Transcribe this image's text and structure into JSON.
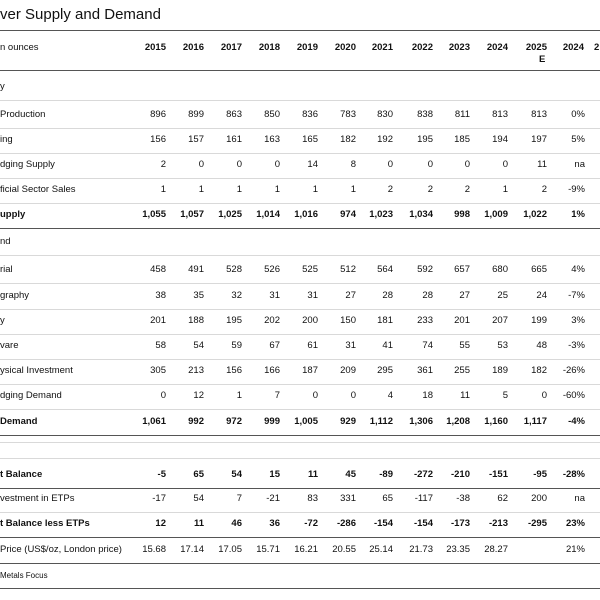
{
  "title": "ver Supply and Demand",
  "header": {
    "unit": "n ounces",
    "years": [
      "2015",
      "2016",
      "2017",
      "2018",
      "2019",
      "2020",
      "2021",
      "2022",
      "2023",
      "2024",
      "2025"
    ],
    "estimate": "E",
    "change": "2024",
    "cut": "2"
  },
  "rows": [
    {
      "label": "y",
      "section": true
    },
    {
      "label": "Production",
      "cells": [
        "896",
        "899",
        "863",
        "850",
        "836",
        "783",
        "830",
        "838",
        "811",
        "813",
        "813",
        "0%"
      ]
    },
    {
      "label": "ing",
      "cells": [
        "156",
        "157",
        "161",
        "163",
        "165",
        "182",
        "192",
        "195",
        "185",
        "194",
        "197",
        "5%"
      ]
    },
    {
      "label": "dging Supply",
      "cells": [
        "2",
        "0",
        "0",
        "0",
        "14",
        "8",
        "0",
        "0",
        "0",
        "0",
        "11",
        "na"
      ]
    },
    {
      "label": "ficial Sector Sales",
      "cells": [
        "1",
        "1",
        "1",
        "1",
        "1",
        "1",
        "2",
        "2",
        "2",
        "1",
        "2",
        "-9%"
      ]
    },
    {
      "label": "upply",
      "bold": true,
      "cells": [
        "1,055",
        "1,057",
        "1,025",
        "1,014",
        "1,016",
        "974",
        "1,023",
        "1,034",
        "998",
        "1,009",
        "1,022",
        "1%"
      ]
    },
    {
      "label": "nd",
      "section": true
    },
    {
      "label": "rial",
      "cells": [
        "458",
        "491",
        "528",
        "526",
        "525",
        "512",
        "564",
        "592",
        "657",
        "680",
        "665",
        "4%"
      ]
    },
    {
      "label": "graphy",
      "cells": [
        "38",
        "35",
        "32",
        "31",
        "31",
        "27",
        "28",
        "28",
        "27",
        "25",
        "24",
        "-7%"
      ]
    },
    {
      "label": "y",
      "cells": [
        "201",
        "188",
        "195",
        "202",
        "200",
        "150",
        "181",
        "233",
        "201",
        "207",
        "199",
        "3%"
      ]
    },
    {
      "label": "vare",
      "cells": [
        "58",
        "54",
        "59",
        "67",
        "61",
        "31",
        "41",
        "74",
        "55",
        "53",
        "48",
        "-3%"
      ]
    },
    {
      "label": "ysical Investment",
      "cells": [
        "305",
        "213",
        "156",
        "166",
        "187",
        "209",
        "295",
        "361",
        "255",
        "189",
        "182",
        "-26%"
      ]
    },
    {
      "label": "dging Demand",
      "cells": [
        "0",
        "12",
        "1",
        "7",
        "0",
        "0",
        "4",
        "18",
        "11",
        "5",
        "0",
        "-60%"
      ]
    },
    {
      "label": "Demand",
      "bold": true,
      "cells": [
        "1,061",
        "992",
        "972",
        "999",
        "1,005",
        "929",
        "1,112",
        "1,306",
        "1,208",
        "1,160",
        "1,117",
        "-4%"
      ]
    },
    {
      "label": "t Balance",
      "bold": true,
      "cells": [
        "-5",
        "65",
        "54",
        "15",
        "11",
        "45",
        "-89",
        "-272",
        "-210",
        "-151",
        "-95",
        "-28%"
      ]
    },
    {
      "label": "vestment in ETPs",
      "cells": [
        "-17",
        "54",
        "7",
        "-21",
        "83",
        "331",
        "65",
        "-117",
        "-38",
        "62",
        "200",
        "na"
      ]
    },
    {
      "label": "t Balance less ETPs",
      "bold": true,
      "cells": [
        "12",
        "11",
        "46",
        "36",
        "-72",
        "-286",
        "-154",
        "-154",
        "-173",
        "-213",
        "-295",
        "23%"
      ]
    },
    {
      "label": "Price (US$/oz, London price)",
      "cells": [
        "15.68",
        "17.14",
        "17.05",
        "15.71",
        "16.21",
        "20.55",
        "25.14",
        "21.73",
        "23.35",
        "28.27",
        null,
        "21%"
      ]
    }
  ],
  "source": "Metals Focus"
}
